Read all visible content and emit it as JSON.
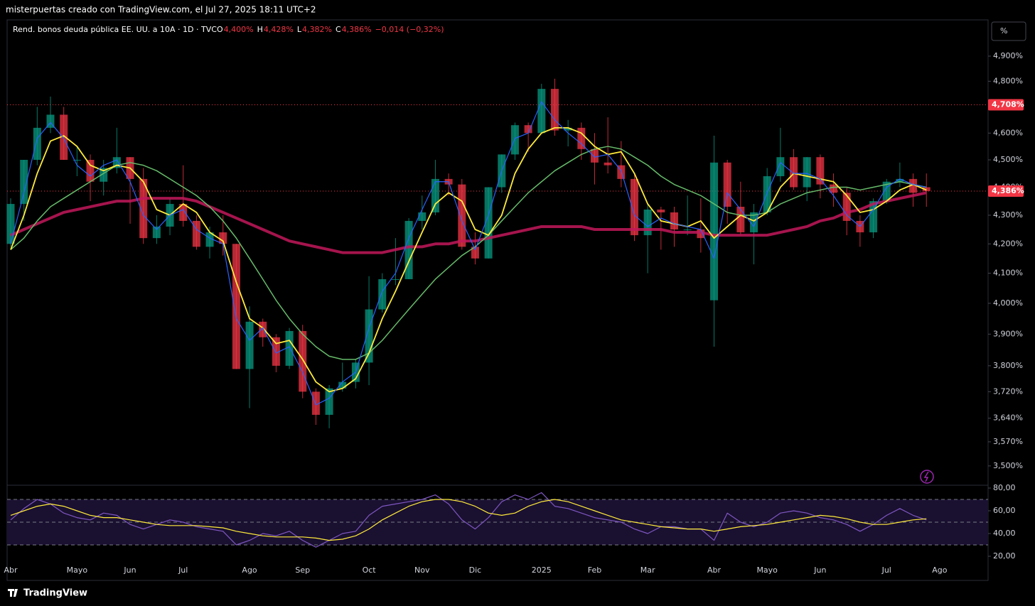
{
  "header": {
    "author_line": "misterpuertas creado con TradingView.com, el Jul 27, 2025 18:11 UTC+2",
    "symbol": "Rend. bonos deuda pública EE. UU. a 10A · 1D · TVC",
    "ohlc": [
      {
        "letter": "O",
        "value": "4,400%"
      },
      {
        "letter": "H",
        "value": "4,428%"
      },
      {
        "letter": "L",
        "value": "4,382%"
      },
      {
        "letter": "C",
        "value": "4,386%"
      }
    ],
    "change": "−0,014 (−0,32%)",
    "scale_button": "%"
  },
  "footer": {
    "brand": "TradingView"
  },
  "chart_data": [
    {
      "type": "candlestick",
      "log": true,
      "ylim": [
        3.445,
        5.048
      ],
      "yticks": [
        {
          "value": 3.5,
          "label": "3,500%"
        },
        {
          "value": 3.57,
          "label": "3,570%"
        },
        {
          "value": 3.64,
          "label": "3,640%"
        },
        {
          "value": 3.72,
          "label": "3,720%"
        },
        {
          "value": 3.8,
          "label": "3,800%"
        },
        {
          "value": 3.9,
          "label": "3,900%"
        },
        {
          "value": 4.0,
          "label": "4,000%"
        },
        {
          "value": 4.1,
          "label": "4,100%"
        },
        {
          "value": 4.2,
          "label": "4,200%"
        },
        {
          "value": 4.3,
          "label": "4,300%"
        },
        {
          "value": 4.4,
          "label": "4,400%"
        },
        {
          "value": 4.5,
          "label": "4,500%"
        },
        {
          "value": 4.6,
          "label": "4,600%"
        },
        {
          "value": 4.7,
          "label": "4,700%"
        },
        {
          "value": 4.8,
          "label": "4,800%"
        },
        {
          "value": 4.9,
          "label": "4,900%"
        }
      ],
      "categories": [
        "Abr",
        null,
        null,
        null,
        null,
        "Mayo",
        null,
        null,
        null,
        "Jun",
        null,
        null,
        null,
        "Jul",
        null,
        null,
        null,
        null,
        "Ago",
        null,
        null,
        null,
        "Sep",
        null,
        null,
        null,
        null,
        "Oct",
        null,
        null,
        null,
        "Nov",
        null,
        null,
        null,
        "Dic",
        null,
        null,
        null,
        null,
        "2025",
        null,
        null,
        null,
        "Feb",
        null,
        null,
        null,
        "Mar",
        null,
        null,
        null,
        null,
        "Abr",
        null,
        null,
        null,
        "Mayo",
        null,
        null,
        null,
        "Jun",
        null,
        null,
        null,
        null,
        "Jul",
        null,
        null,
        null,
        "Ago"
      ],
      "open": [
        4.2,
        4.34,
        4.5,
        4.62,
        4.67,
        4.5,
        4.5,
        4.42,
        4.47,
        4.51,
        4.43,
        4.22,
        4.26,
        4.34,
        4.28,
        4.19,
        4.24,
        4.2,
        3.79,
        3.94,
        3.89,
        3.8,
        3.91,
        3.72,
        3.65,
        3.73,
        3.75,
        3.81,
        3.98,
        4.08,
        4.08,
        4.28,
        4.31,
        4.43,
        4.41,
        4.19,
        4.15,
        4.4,
        4.52,
        4.63,
        4.6,
        4.77,
        4.61,
        4.62,
        4.54,
        4.49,
        4.48,
        4.43,
        4.23,
        4.32,
        4.31,
        4.25,
        4.25,
        4.01,
        4.49,
        4.33,
        4.24,
        4.31,
        4.44,
        4.51,
        4.4,
        4.51,
        4.41,
        4.38,
        4.28,
        4.24,
        4.35,
        4.42,
        4.43,
        4.4,
        null
      ],
      "high": [
        4.36,
        4.5,
        4.7,
        4.74,
        4.7,
        4.55,
        4.52,
        4.5,
        4.62,
        4.51,
        4.47,
        4.3,
        4.36,
        4.48,
        4.3,
        4.26,
        4.3,
        4.2,
        3.99,
        3.95,
        3.9,
        3.92,
        3.93,
        3.73,
        3.74,
        3.81,
        3.82,
        4.09,
        4.1,
        4.22,
        4.29,
        4.37,
        4.5,
        4.45,
        4.43,
        4.24,
        4.4,
        4.52,
        4.64,
        4.64,
        4.79,
        4.81,
        4.65,
        4.64,
        4.6,
        4.66,
        4.57,
        4.45,
        4.34,
        4.33,
        4.33,
        4.37,
        4.36,
        4.59,
        4.5,
        4.42,
        4.34,
        4.47,
        4.62,
        4.54,
        4.51,
        4.52,
        4.45,
        4.4,
        4.3,
        4.36,
        4.43,
        4.49,
        4.45,
        4.45,
        null
      ],
      "low": [
        4.19,
        4.28,
        4.48,
        4.6,
        4.5,
        4.44,
        4.35,
        4.37,
        4.45,
        4.27,
        4.2,
        4.2,
        4.23,
        4.26,
        4.18,
        4.15,
        4.16,
        3.79,
        3.67,
        3.86,
        3.78,
        3.79,
        3.7,
        3.62,
        3.61,
        3.72,
        3.73,
        3.74,
        3.97,
        4.06,
        4.08,
        4.25,
        4.3,
        4.37,
        4.18,
        4.13,
        4.15,
        4.38,
        4.5,
        4.53,
        4.6,
        4.59,
        4.55,
        4.5,
        4.41,
        4.45,
        4.4,
        4.21,
        4.1,
        4.18,
        4.19,
        4.23,
        4.17,
        3.86,
        4.27,
        4.23,
        4.13,
        4.3,
        4.42,
        4.39,
        4.35,
        4.36,
        4.33,
        4.23,
        4.19,
        4.22,
        4.34,
        4.4,
        4.33,
        4.33,
        null
      ],
      "close": [
        4.34,
        4.5,
        4.62,
        4.67,
        4.5,
        4.5,
        4.42,
        4.47,
        4.51,
        4.43,
        4.22,
        4.26,
        4.34,
        4.28,
        4.19,
        4.24,
        4.2,
        3.79,
        3.94,
        3.89,
        3.8,
        3.91,
        3.72,
        3.65,
        3.73,
        3.75,
        3.81,
        3.98,
        4.08,
        4.08,
        4.28,
        4.31,
        4.43,
        4.41,
        4.19,
        4.15,
        4.4,
        4.52,
        4.63,
        4.6,
        4.77,
        4.61,
        4.62,
        4.54,
        4.49,
        4.48,
        4.43,
        4.23,
        4.32,
        4.31,
        4.25,
        4.25,
        4.22,
        4.49,
        4.33,
        4.24,
        4.31,
        4.44,
        4.51,
        4.4,
        4.51,
        4.41,
        4.38,
        4.28,
        4.24,
        4.35,
        4.42,
        4.43,
        4.38,
        4.386,
        null
      ],
      "up_color": "#089981",
      "down_color": "#f23645",
      "series": [
        {
          "color": "#c2185b",
          "width": 4,
          "values": [
            4.23,
            4.25,
            4.27,
            4.29,
            4.31,
            4.32,
            4.33,
            4.34,
            4.35,
            4.35,
            4.36,
            4.36,
            4.36,
            4.36,
            4.35,
            4.33,
            4.31,
            4.29,
            4.27,
            4.25,
            4.23,
            4.21,
            4.2,
            4.19,
            4.18,
            4.17,
            4.17,
            4.17,
            4.17,
            4.18,
            4.19,
            4.19,
            4.2,
            4.2,
            4.21,
            4.21,
            4.22,
            4.23,
            4.24,
            4.25,
            4.26,
            4.26,
            4.26,
            4.26,
            4.25,
            4.25,
            4.25,
            4.25,
            4.25,
            4.25,
            4.24,
            4.24,
            4.24,
            4.23,
            4.23,
            4.23,
            4.23,
            4.23,
            4.24,
            4.25,
            4.26,
            4.28,
            4.29,
            4.31,
            4.32,
            4.34,
            4.35,
            4.36,
            4.37,
            4.38,
            null
          ]
        },
        {
          "color": "#66bb6a",
          "width": 1.5,
          "values": [
            4.18,
            4.22,
            4.28,
            4.33,
            4.36,
            4.39,
            4.42,
            4.45,
            4.48,
            4.49,
            4.48,
            4.46,
            4.43,
            4.4,
            4.37,
            4.33,
            4.28,
            4.22,
            4.15,
            4.08,
            4.01,
            3.95,
            3.9,
            3.86,
            3.83,
            3.82,
            3.82,
            3.84,
            3.88,
            3.93,
            3.98,
            4.03,
            4.08,
            4.12,
            4.16,
            4.19,
            4.23,
            4.28,
            4.33,
            4.38,
            4.42,
            4.46,
            4.49,
            4.52,
            4.54,
            4.55,
            4.54,
            4.51,
            4.48,
            4.44,
            4.41,
            4.39,
            4.37,
            4.34,
            4.31,
            4.3,
            4.3,
            4.31,
            4.34,
            4.36,
            4.38,
            4.39,
            4.4,
            4.4,
            4.39,
            4.4,
            4.41,
            4.42,
            4.41,
            4.4,
            null
          ]
        },
        {
          "color": "#ffeb3b",
          "width": 1.8,
          "values": [
            4.18,
            4.3,
            4.45,
            4.57,
            4.59,
            4.55,
            4.48,
            4.46,
            4.48,
            4.47,
            4.42,
            4.32,
            4.3,
            4.34,
            4.31,
            4.24,
            4.21,
            4.07,
            3.95,
            3.92,
            3.87,
            3.88,
            3.82,
            3.75,
            3.72,
            3.73,
            3.76,
            3.84,
            3.95,
            4.04,
            4.14,
            4.24,
            4.34,
            4.38,
            4.35,
            4.25,
            4.23,
            4.3,
            4.45,
            4.54,
            4.6,
            4.62,
            4.62,
            4.6,
            4.55,
            4.52,
            4.53,
            4.45,
            4.34,
            4.28,
            4.27,
            4.26,
            4.28,
            4.22,
            4.26,
            4.3,
            4.28,
            4.31,
            4.4,
            4.45,
            4.44,
            4.43,
            4.42,
            4.37,
            4.31,
            4.32,
            4.35,
            4.39,
            4.41,
            4.39,
            null
          ]
        },
        {
          "color": "#2962ff",
          "width": 1.2,
          "values": [
            4.2,
            4.38,
            4.58,
            4.64,
            4.58,
            4.48,
            4.44,
            4.48,
            4.5,
            4.42,
            4.3,
            4.25,
            4.3,
            4.32,
            4.25,
            4.22,
            4.2,
            3.95,
            3.88,
            3.92,
            3.84,
            3.86,
            3.78,
            3.68,
            3.7,
            3.75,
            3.78,
            3.92,
            4.04,
            4.1,
            4.22,
            4.32,
            4.42,
            4.42,
            4.28,
            4.18,
            4.3,
            4.46,
            4.58,
            4.6,
            4.72,
            4.65,
            4.6,
            4.56,
            4.51,
            4.52,
            4.46,
            4.3,
            4.26,
            4.29,
            4.27,
            4.26,
            4.25,
            4.15,
            4.38,
            4.32,
            4.26,
            4.38,
            4.49,
            4.45,
            4.45,
            4.43,
            4.37,
            4.3,
            4.26,
            4.32,
            4.4,
            4.43,
            4.41,
            4.4,
            null
          ]
        }
      ],
      "hlines": [
        {
          "value": 4.708,
          "label": "4,708%",
          "color": "#f23645",
          "dotted": true
        },
        {
          "value": 4.386,
          "label": "4,386%",
          "color": "#f23645",
          "dotted": true
        }
      ]
    },
    {
      "type": "line",
      "ylim": [
        11.25,
        82.5
      ],
      "yticks": [
        {
          "value": 20,
          "label": "20,00"
        },
        {
          "value": 40,
          "label": "40,00"
        },
        {
          "value": 60,
          "label": "60,00"
        },
        {
          "value": 80,
          "label": "80,00"
        }
      ],
      "band": [
        30,
        70
      ],
      "band_color": "#1a1030",
      "hlines": [
        30,
        50,
        70
      ],
      "series": [
        {
          "color": "#7e57c2",
          "width": 1.2,
          "values": [
            52,
            62,
            70,
            66,
            58,
            54,
            52,
            58,
            56,
            48,
            44,
            48,
            52,
            50,
            46,
            44,
            42,
            30,
            34,
            40,
            38,
            42,
            34,
            28,
            34,
            40,
            42,
            56,
            64,
            66,
            68,
            70,
            74,
            66,
            52,
            44,
            54,
            68,
            74,
            70,
            76,
            64,
            62,
            58,
            54,
            52,
            50,
            44,
            40,
            46,
            46,
            44,
            44,
            34,
            58,
            50,
            46,
            50,
            58,
            60,
            58,
            54,
            52,
            48,
            42,
            48,
            56,
            62,
            56,
            52,
            null
          ]
        },
        {
          "color": "#ffeb3b",
          "width": 1.2,
          "values": [
            56,
            60,
            64,
            66,
            64,
            60,
            56,
            54,
            54,
            52,
            50,
            48,
            47,
            47,
            47,
            46,
            45,
            42,
            40,
            38,
            37,
            37,
            37,
            36,
            34,
            35,
            38,
            44,
            52,
            58,
            64,
            68,
            70,
            70,
            68,
            64,
            58,
            56,
            58,
            64,
            68,
            70,
            68,
            64,
            60,
            56,
            52,
            50,
            48,
            46,
            45,
            44,
            44,
            42,
            44,
            46,
            47,
            48,
            50,
            52,
            54,
            56,
            55,
            53,
            50,
            48,
            48,
            50,
            52,
            53,
            null
          ]
        }
      ]
    }
  ]
}
